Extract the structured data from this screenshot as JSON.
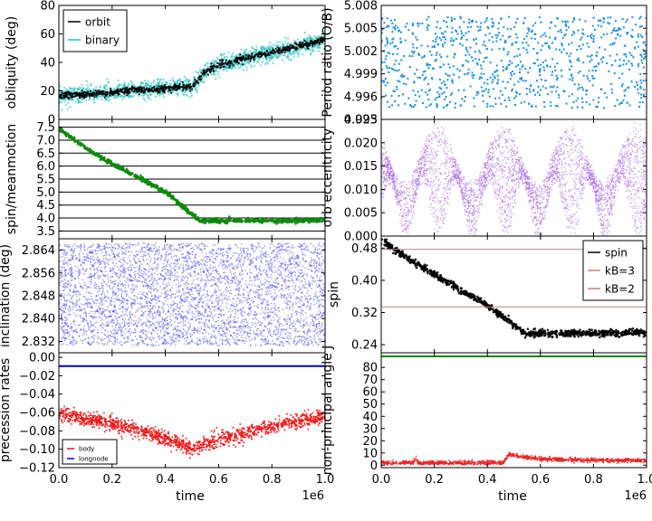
{
  "figure": {
    "xlabel": "time",
    "offset_text": "1e6",
    "background": "#ffffff"
  },
  "chart_data": [
    {
      "id": "obliquity",
      "type": "scatter",
      "ylabel": "obliquity (deg)",
      "xlim": [
        0,
        1000000
      ],
      "ylim": [
        0,
        80
      ],
      "yticks": [
        0,
        20,
        40,
        60,
        80
      ],
      "ytick_labels": [
        "0",
        "20",
        "40",
        "60",
        "80"
      ],
      "series": [
        {
          "name": "binary",
          "color": "#20c0c0",
          "x": [
            0,
            100000,
            200000,
            300000,
            400000,
            450000,
            500000,
            550000,
            600000,
            700000,
            800000,
            900000,
            1000000
          ],
          "y": [
            17,
            17.5,
            19,
            20.5,
            21.5,
            23,
            23,
            33,
            38,
            43,
            47,
            51,
            56
          ],
          "spread": 3
        },
        {
          "name": "orbit",
          "color": "#000000",
          "x": [
            0,
            100000,
            200000,
            300000,
            400000,
            450000,
            500000,
            550000,
            600000,
            700000,
            800000,
            900000,
            1000000
          ],
          "y": [
            17,
            17.5,
            19,
            20.5,
            21.5,
            23,
            23,
            33,
            38,
            43,
            47,
            51,
            56
          ],
          "spread": 1.2
        }
      ],
      "legend": {
        "position": "top-left",
        "entries": [
          "orbit",
          "binary"
        ]
      }
    },
    {
      "id": "period-ratio",
      "type": "scatter",
      "ylabel": "Period ratio (O/B)",
      "xlim": [
        0,
        1000000
      ],
      "ylim": [
        4.993,
        5.008
      ],
      "yticks": [
        4.993,
        4.996,
        4.999,
        5.002,
        5.005,
        5.008
      ],
      "ytick_labels": [
        "4.993",
        "4.996",
        "4.999",
        "5.002",
        "5.005",
        "5.008"
      ],
      "series": [
        {
          "name": "ratio",
          "color": "#1e90e0",
          "y_range": [
            4.9945,
            5.0065
          ],
          "count": 900
        }
      ]
    },
    {
      "id": "spin-meanmotion",
      "type": "line",
      "ylabel": "spin/meanmotion",
      "xlim": [
        0,
        1000000
      ],
      "ylim": [
        3.2,
        7.8
      ],
      "yticks": [
        3.5,
        4.0,
        4.5,
        5.0,
        5.5,
        6.0,
        6.5,
        7.0,
        7.5
      ],
      "ytick_labels": [
        "3.5",
        "4.0",
        "4.5",
        "5.0",
        "5.5",
        "6.0",
        "6.5",
        "7.0",
        "7.5"
      ],
      "reference_lines": [
        3.5,
        4.0,
        4.5,
        5.0,
        5.5,
        6.0,
        6.5,
        7.0,
        7.5
      ],
      "series": [
        {
          "name": "spin/meanmotion",
          "color": "#0a8a0a",
          "x": [
            0,
            100000,
            200000,
            300000,
            400000,
            500000,
            530000,
            600000,
            800000,
            1000000
          ],
          "y": [
            7.45,
            6.7,
            6.1,
            5.55,
            5.0,
            4.15,
            3.88,
            3.9,
            3.9,
            3.92
          ]
        }
      ]
    },
    {
      "id": "orb-eccentricity",
      "type": "scatter",
      "ylabel": "orb eccentricity",
      "xlim": [
        0,
        1000000
      ],
      "ylim": [
        0.0,
        0.025
      ],
      "yticks": [
        0.0,
        0.005,
        0.01,
        0.015,
        0.02,
        0.025
      ],
      "ytick_labels": [
        "0.000",
        "0.005",
        "0.010",
        "0.015",
        "0.020",
        "0.025"
      ],
      "series": [
        {
          "name": "eccentricity",
          "color": "#a660e0",
          "envelope_min": [
            0.0,
            0.012
          ],
          "envelope_max": [
            0.011,
            0.0235
          ],
          "oscillations": 8,
          "count": 4000
        }
      ]
    },
    {
      "id": "inclination",
      "type": "scatter",
      "ylabel": "inclination (deg)",
      "xlim": [
        0,
        1000000
      ],
      "ylim": [
        2.828,
        2.868
      ],
      "yticks": [
        2.832,
        2.84,
        2.848,
        2.856,
        2.864
      ],
      "ytick_labels": [
        "2.832",
        "2.840",
        "2.848",
        "2.856",
        "2.864"
      ],
      "series": [
        {
          "name": "inclination",
          "color": "#3c3cf0",
          "y_range": [
            2.8305,
            2.8665
          ],
          "count": 4500
        }
      ]
    },
    {
      "id": "spin",
      "type": "line",
      "ylabel": "spin",
      "xlim": [
        0,
        1000000
      ],
      "ylim": [
        0.22,
        0.51
      ],
      "yticks": [
        0.24,
        0.32,
        0.4,
        0.48
      ],
      "ytick_labels": [
        "0.24",
        "0.32",
        "0.40",
        "0.48"
      ],
      "series": [
        {
          "name": "spin",
          "color": "#000000",
          "x": [
            0,
            100000,
            200000,
            300000,
            400000,
            500000,
            540000,
            600000,
            800000,
            1000000
          ],
          "y": [
            0.5,
            0.455,
            0.415,
            0.376,
            0.337,
            0.29,
            0.268,
            0.268,
            0.268,
            0.27
          ]
        },
        {
          "name": "kB=3",
          "color": "#c88080",
          "constant": 0.477
        },
        {
          "name": "kB=2",
          "color": "#c88080",
          "constant": 0.334
        }
      ],
      "legend": {
        "position": "top-right",
        "entries": [
          "spin",
          "kB=3",
          "kB=2"
        ]
      }
    },
    {
      "id": "precession-rates",
      "type": "scatter",
      "ylabel": "precession rates",
      "xlim": [
        0,
        1000000
      ],
      "ylim": [
        -0.12,
        0.005
      ],
      "yticks": [
        0.0,
        -0.02,
        -0.04,
        -0.06,
        -0.08,
        -0.1,
        -0.12
      ],
      "ytick_labels": [
        "0.00",
        "−0.02",
        "−0.04",
        "−0.06",
        "−0.08",
        "−0.10",
        "−0.12"
      ],
      "series": [
        {
          "name": "body",
          "color": "#ee1010",
          "x": [
            0,
            200000,
            400000,
            500000,
            600000,
            800000,
            1000000
          ],
          "y": [
            -0.061,
            -0.072,
            -0.088,
            -0.1,
            -0.09,
            -0.075,
            -0.064
          ]
        },
        {
          "name": "longnode",
          "color": "#0000cc",
          "constant": -0.0095
        }
      ],
      "legend": {
        "position": "bottom-left",
        "entries": [
          "body",
          "longnode"
        ]
      }
    },
    {
      "id": "non-principal-angle",
      "type": "scatter",
      "ylabel": "non-principal angle J",
      "xlim": [
        0,
        1000000
      ],
      "ylim": [
        -2,
        92
      ],
      "yticks": [
        0,
        10,
        20,
        30,
        40,
        50,
        60,
        70,
        80
      ],
      "ytick_labels": [
        "0",
        "10",
        "20",
        "30",
        "40",
        "50",
        "60",
        "70",
        "80"
      ],
      "series": [
        {
          "name": "angle",
          "color": "#0a8a0a",
          "constant": 89
        },
        {
          "name": "angle-low",
          "color": "#ee2020",
          "x": [
            0,
            120000,
            130000,
            140000,
            300000,
            460000,
            480000,
            520000,
            600000,
            800000,
            1000000
          ],
          "y": [
            2,
            2,
            6,
            2,
            2,
            2,
            9,
            7,
            5,
            4,
            4
          ]
        }
      ]
    }
  ]
}
